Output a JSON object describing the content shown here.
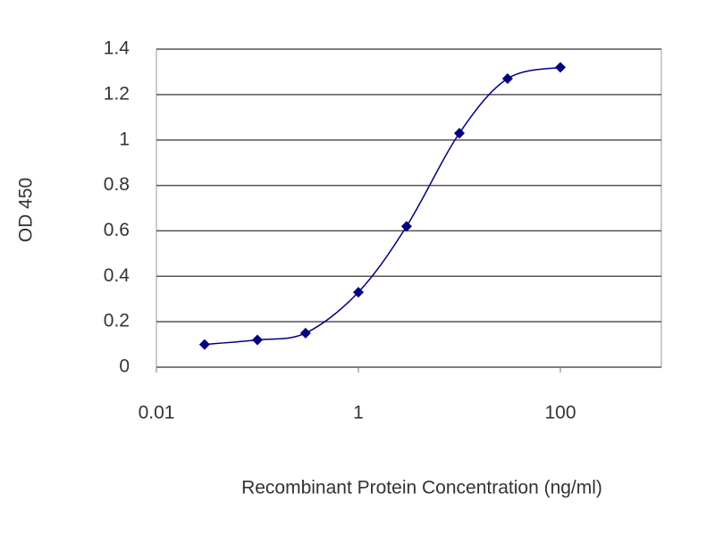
{
  "chart_data": {
    "type": "line",
    "x_label": "Recombinant Protein Concentration (ng/ml)",
    "y_label": "OD 450",
    "x": [
      0.03,
      0.1,
      0.3,
      1,
      3,
      10,
      30,
      100
    ],
    "series": [
      {
        "color": "#000080",
        "values": [
          0.1,
          0.12,
          0.15,
          0.33,
          0.62,
          1.03,
          1.27,
          1.32
        ]
      }
    ],
    "xlim": [
      0.01,
      1000
    ],
    "xticks": [
      0.01,
      1,
      100
    ],
    "xscale": "log",
    "ylim": [
      0,
      1.4
    ],
    "yticks": [
      0,
      0.2,
      0.4,
      0.6,
      0.8,
      1,
      1.2,
      1.4
    ],
    "grid": true
  }
}
